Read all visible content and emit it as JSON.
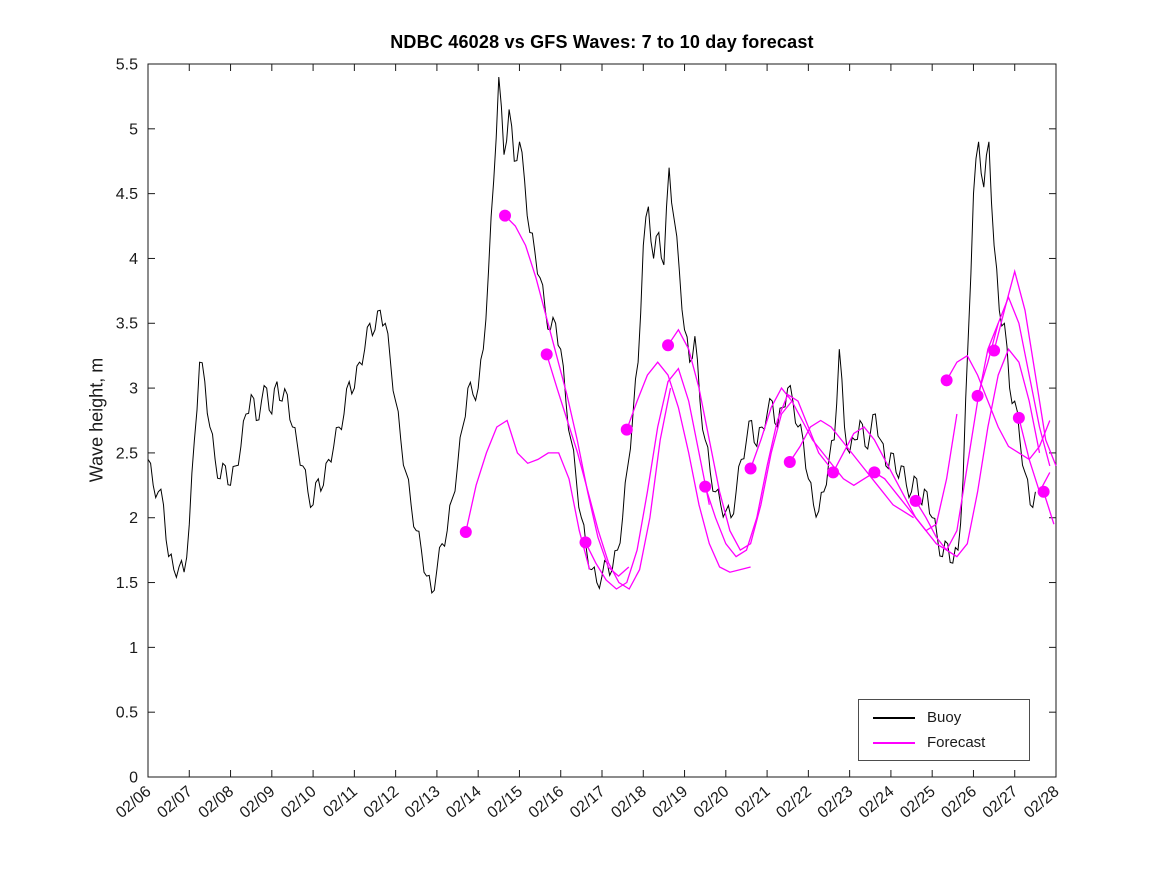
{
  "header": {
    "title": "NDBC 46028 vs GFS Waves: 7 to 10 day forecast"
  },
  "axes": {
    "ylabel": "Wave height, m",
    "xlabel": ""
  },
  "legend": {
    "items": [
      {
        "label": "Buoy",
        "color": "#000000"
      },
      {
        "label": "Forecast",
        "color": "#ff00ff"
      }
    ]
  },
  "chart_data": {
    "type": "line",
    "title": "NDBC 46028 vs GFS Waves: 7 to 10 day forecast",
    "xlabel": "",
    "ylabel": "Wave height, m",
    "ylim": [
      0,
      5.5
    ],
    "xlim_days": [
      0,
      22
    ],
    "grid": false,
    "legend_position": "bottom-right",
    "yticks": [
      0,
      0.5,
      1,
      1.5,
      2,
      2.5,
      3,
      3.5,
      4,
      4.5,
      5,
      5.5
    ],
    "ytick_labels": [
      "0",
      "0.5",
      "1",
      "1.5",
      "2",
      "2.5",
      "3",
      "3.5",
      "4",
      "4.5",
      "5",
      "5.5"
    ],
    "xtick_labels": [
      "02/06",
      "02/07",
      "02/08",
      "02/09",
      "02/10",
      "02/11",
      "02/12",
      "02/13",
      "02/14",
      "02/15",
      "02/16",
      "02/17",
      "02/18",
      "02/19",
      "02/20",
      "02/21",
      "02/22",
      "02/23",
      "02/24",
      "02/25",
      "02/26",
      "02/27",
      "02/28"
    ],
    "series": {
      "buoy": {
        "name": "Buoy",
        "color": "#000000",
        "x_start_day": 0,
        "x_step_day": 0.125,
        "values": [
          2.45,
          2.25,
          2.2,
          2.1,
          1.7,
          1.6,
          1.62,
          1.58,
          1.95,
          2.6,
          3.2,
          3.05,
          2.7,
          2.45,
          2.3,
          2.4,
          2.25,
          2.4,
          2.55,
          2.8,
          2.95,
          2.75,
          2.9,
          3.0,
          2.8,
          3.05,
          2.9,
          2.95,
          2.7,
          2.55,
          2.4,
          2.2,
          2.1,
          2.3,
          2.25,
          2.45,
          2.55,
          2.7,
          2.8,
          3.05,
          3.0,
          3.2,
          3.3,
          3.5,
          3.45,
          3.6,
          3.5,
          3.2,
          2.9,
          2.6,
          2.35,
          2.1,
          1.9,
          1.75,
          1.55,
          1.42,
          1.6,
          1.8,
          1.9,
          2.15,
          2.4,
          2.7,
          3.0,
          2.95,
          3.0,
          3.3,
          3.9,
          4.6,
          5.4,
          4.8,
          5.15,
          4.75,
          4.9,
          4.6,
          4.2,
          4.05,
          3.85,
          3.6,
          3.45,
          3.5,
          3.3,
          2.9,
          2.6,
          2.3,
          2.0,
          1.75,
          1.6,
          1.5,
          1.55,
          1.65,
          1.6,
          1.75,
          2.0,
          2.4,
          2.8,
          3.2,
          4.1,
          4.4,
          4.0,
          4.2,
          3.95,
          4.7,
          4.3,
          3.9,
          3.45,
          3.2,
          3.4,
          2.9,
          2.6,
          2.35,
          2.2,
          2.1,
          2.05,
          2.0,
          2.2,
          2.45,
          2.6,
          2.75,
          2.55,
          2.7,
          2.8,
          2.9,
          2.7,
          2.85,
          3.0,
          2.9,
          2.7,
          2.6,
          2.3,
          2.1,
          2.05,
          2.2,
          2.45,
          2.6,
          3.3,
          2.7,
          2.5,
          2.6,
          2.75,
          2.55,
          2.65,
          2.8,
          2.6,
          2.4,
          2.5,
          2.35,
          2.4,
          2.25,
          2.2,
          2.3,
          2.1,
          2.2,
          2.0,
          1.85,
          1.7,
          1.8,
          1.65,
          1.75,
          2.3,
          3.4,
          4.5,
          4.9,
          4.55,
          4.9,
          4.1,
          3.6,
          3.5,
          3.0,
          2.9,
          2.6,
          2.35,
          2.1,
          2.2
        ]
      },
      "forecast": {
        "name": "Forecast",
        "color": "#ff00ff",
        "x_step_day": 0.25,
        "marker": "filled-circle-at-segment-start",
        "segments": [
          {
            "start_day": 7.7,
            "values": [
              1.89,
              2.25,
              2.5,
              2.7,
              2.75,
              2.5,
              2.42,
              2.45,
              2.5,
              2.5,
              2.3,
              1.9,
              1.6
            ]
          },
          {
            "start_day": 8.65,
            "values": [
              4.33,
              4.25,
              4.1,
              3.85,
              3.55,
              3.25,
              2.95,
              2.6,
              2.2,
              1.85,
              1.62,
              1.55,
              1.62
            ]
          },
          {
            "start_day": 9.66,
            "values": [
              3.26,
              3.0,
              2.75,
              2.5,
              2.2,
              1.9,
              1.65,
              1.5,
              1.45,
              1.6,
              2.0,
              2.6,
              3.0
            ]
          },
          {
            "start_day": 10.6,
            "values": [
              1.81,
              1.65,
              1.52,
              1.45,
              1.5,
              1.75,
              2.2,
              2.7,
              3.05,
              3.15,
              2.9,
              2.5,
              2.1
            ]
          },
          {
            "start_day": 11.6,
            "values": [
              2.68,
              2.9,
              3.1,
              3.2,
              3.1,
              2.85,
              2.5,
              2.1,
              1.8,
              1.62,
              1.58,
              1.6,
              1.62
            ]
          },
          {
            "start_day": 12.6,
            "values": [
              3.33,
              3.45,
              3.3,
              3.0,
              2.6,
              2.2,
              1.9,
              1.75,
              1.8,
              2.1,
              2.5,
              2.8,
              2.9
            ]
          },
          {
            "start_day": 13.5,
            "values": [
              2.24,
              2.0,
              1.8,
              1.7,
              1.75,
              2.0,
              2.4,
              2.75,
              2.95,
              2.9,
              2.7,
              2.5,
              2.4
            ]
          },
          {
            "start_day": 14.6,
            "values": [
              2.38,
              2.6,
              2.85,
              3.0,
              2.9,
              2.75,
              2.6,
              2.5,
              2.4,
              2.3,
              2.25,
              2.3,
              2.35
            ]
          },
          {
            "start_day": 15.55,
            "values": [
              2.43,
              2.55,
              2.7,
              2.75,
              2.7,
              2.6,
              2.5,
              2.4,
              2.3,
              2.2,
              2.1,
              2.05,
              2.0
            ]
          },
          {
            "start_day": 16.6,
            "values": [
              2.35,
              2.5,
              2.65,
              2.7,
              2.6,
              2.45,
              2.3,
              2.15,
              2.0,
              1.9,
              1.95,
              2.3,
              2.8
            ]
          },
          {
            "start_day": 17.6,
            "values": [
              2.35,
              2.3,
              2.2,
              2.1,
              2.0,
              1.9,
              1.8,
              1.75,
              1.9,
              2.4,
              2.9,
              3.3,
              3.5
            ]
          },
          {
            "start_day": 18.6,
            "values": [
              2.13,
              2.0,
              1.85,
              1.75,
              1.7,
              1.8,
              2.2,
              2.7,
              3.1,
              3.3,
              3.2,
              2.9,
              2.5
            ]
          },
          {
            "start_day": 19.35,
            "values": [
              3.06,
              3.2,
              3.25,
              3.1,
              2.9,
              2.7,
              2.55,
              2.5,
              2.45,
              2.55,
              2.75
            ]
          },
          {
            "start_day": 20.1,
            "values": [
              2.94,
              3.2,
              3.5,
              3.7,
              3.5,
              3.1,
              2.7,
              2.4
            ]
          },
          {
            "start_day": 20.5,
            "values": [
              3.29,
              3.6,
              3.9,
              3.6,
              3.1,
              2.6,
              2.4
            ]
          },
          {
            "start_day": 21.1,
            "values": [
              2.77,
              2.45,
              2.2,
              2.35,
              2.75
            ]
          },
          {
            "start_day": 21.7,
            "values": [
              2.2,
              1.95,
              1.8
            ]
          }
        ]
      }
    }
  }
}
